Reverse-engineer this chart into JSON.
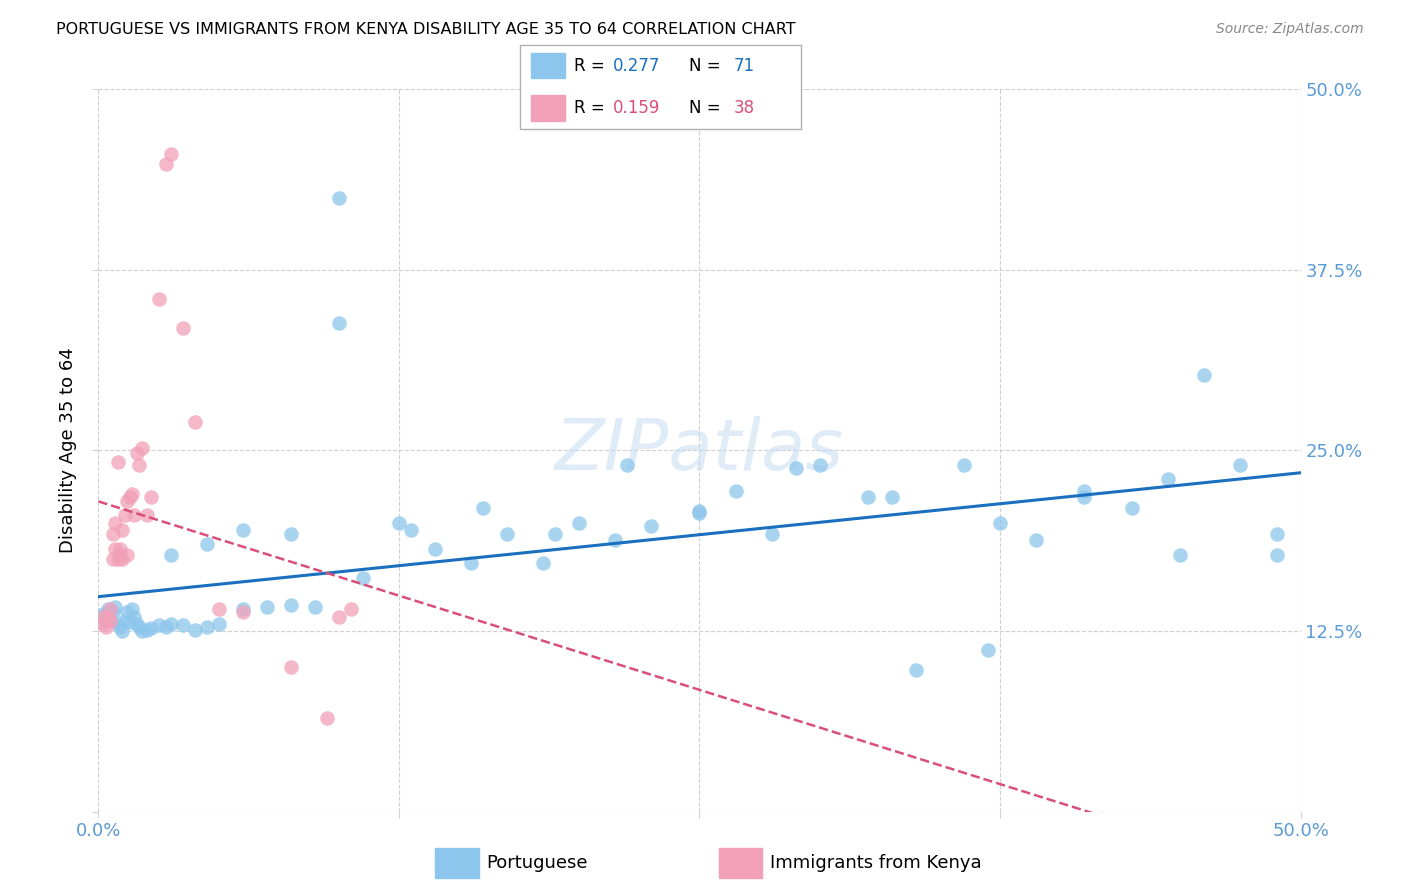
{
  "title": "PORTUGUESE VS IMMIGRANTS FROM KENYA DISABILITY AGE 35 TO 64 CORRELATION CHART",
  "source": "Source: ZipAtlas.com",
  "ylabel": "Disability Age 35 to 64",
  "xlim": [
    0.0,
    0.5
  ],
  "ylim": [
    0.0,
    0.5
  ],
  "xticks": [
    0.0,
    0.125,
    0.25,
    0.375,
    0.5
  ],
  "yticks": [
    0.0,
    0.125,
    0.25,
    0.375,
    0.5
  ],
  "blue_R": 0.277,
  "blue_N": 71,
  "pink_R": 0.159,
  "pink_N": 38,
  "blue_color": "#8DC6EC",
  "pink_color": "#F2A0B8",
  "blue_line_color": "#1A6FBF",
  "pink_line_color": "#D94F7A",
  "axis_label_color": "#5B9BD5",
  "watermark": "ZIPatlas",
  "blue_points_x": [
    0.002,
    0.003,
    0.004,
    0.005,
    0.006,
    0.007,
    0.008,
    0.009,
    0.01,
    0.011,
    0.012,
    0.013,
    0.014,
    0.015,
    0.016,
    0.017,
    0.018,
    0.02,
    0.022,
    0.025,
    0.028,
    0.03,
    0.035,
    0.04,
    0.045,
    0.05,
    0.06,
    0.07,
    0.08,
    0.09,
    0.1,
    0.11,
    0.125,
    0.14,
    0.155,
    0.17,
    0.185,
    0.2,
    0.215,
    0.23,
    0.25,
    0.265,
    0.28,
    0.3,
    0.32,
    0.34,
    0.36,
    0.375,
    0.39,
    0.41,
    0.43,
    0.445,
    0.46,
    0.475,
    0.49,
    0.03,
    0.045,
    0.06,
    0.08,
    0.1,
    0.13,
    0.16,
    0.19,
    0.22,
    0.25,
    0.29,
    0.33,
    0.37,
    0.41,
    0.45,
    0.49
  ],
  "blue_points_y": [
    0.137,
    0.133,
    0.14,
    0.135,
    0.138,
    0.142,
    0.13,
    0.128,
    0.125,
    0.132,
    0.138,
    0.131,
    0.14,
    0.135,
    0.13,
    0.128,
    0.125,
    0.126,
    0.127,
    0.129,
    0.128,
    0.13,
    0.129,
    0.126,
    0.128,
    0.13,
    0.14,
    0.142,
    0.143,
    0.142,
    0.425,
    0.162,
    0.2,
    0.182,
    0.172,
    0.192,
    0.172,
    0.2,
    0.188,
    0.198,
    0.207,
    0.222,
    0.192,
    0.24,
    0.218,
    0.098,
    0.24,
    0.2,
    0.188,
    0.222,
    0.21,
    0.23,
    0.302,
    0.24,
    0.192,
    0.178,
    0.185,
    0.195,
    0.192,
    0.338,
    0.195,
    0.21,
    0.192,
    0.24,
    0.208,
    0.238,
    0.218,
    0.112,
    0.218,
    0.178,
    0.178
  ],
  "pink_points_x": [
    0.002,
    0.002,
    0.003,
    0.004,
    0.005,
    0.005,
    0.006,
    0.006,
    0.007,
    0.007,
    0.008,
    0.008,
    0.009,
    0.009,
    0.01,
    0.01,
    0.011,
    0.012,
    0.012,
    0.013,
    0.014,
    0.015,
    0.016,
    0.017,
    0.018,
    0.02,
    0.022,
    0.025,
    0.028,
    0.03,
    0.035,
    0.04,
    0.05,
    0.06,
    0.08,
    0.095,
    0.1,
    0.105
  ],
  "pink_points_y": [
    0.135,
    0.13,
    0.128,
    0.135,
    0.132,
    0.14,
    0.175,
    0.192,
    0.2,
    0.182,
    0.175,
    0.242,
    0.178,
    0.182,
    0.195,
    0.175,
    0.205,
    0.215,
    0.178,
    0.218,
    0.22,
    0.205,
    0.248,
    0.24,
    0.252,
    0.205,
    0.218,
    0.355,
    0.448,
    0.455,
    0.335,
    0.27,
    0.14,
    0.138,
    0.1,
    0.065,
    0.135,
    0.14
  ]
}
